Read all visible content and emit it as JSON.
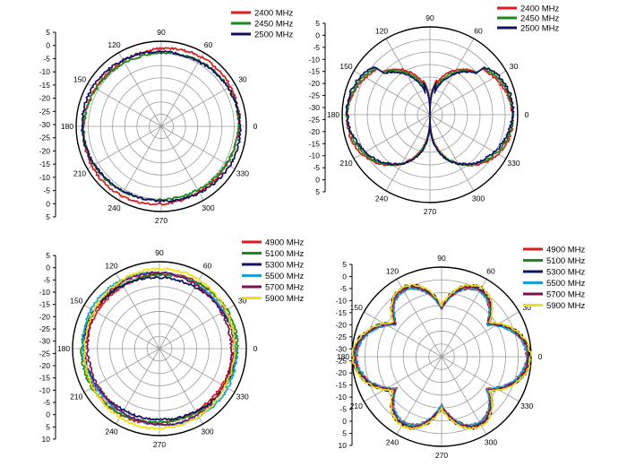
{
  "chart_data": [
    {
      "type": "polar",
      "r_ticks": [
        "5",
        "0",
        "-5",
        "-10",
        "-15",
        "-20",
        "-25",
        "-30"
      ],
      "r_ticks_bottom": [
        "-25",
        "-20",
        "-15",
        "-10",
        "-5",
        "0",
        "5"
      ],
      "r_range": [
        -30,
        5
      ],
      "angle_labels": [
        "90",
        "60",
        "30",
        "0",
        "330",
        "300",
        "270",
        "240",
        "210",
        "180",
        "150",
        "120"
      ],
      "series": [
        {
          "name": "2400 MHz",
          "color": "#e0191f",
          "shape": "omni",
          "level": 2.0
        },
        {
          "name": "2450 MHz",
          "color": "#1a8a1a",
          "shape": "omni",
          "level": 1.0
        },
        {
          "name": "2500 MHz",
          "color": "#101060",
          "shape": "omni",
          "level": 1.6
        }
      ]
    },
    {
      "type": "polar",
      "r_ticks": [
        "5",
        "0",
        "-5",
        "-10",
        "-15",
        "-20",
        "-25",
        "-30"
      ],
      "r_ticks_bottom": [
        "-25",
        "-20",
        "-15",
        "-10",
        "-5",
        "0",
        "5"
      ],
      "r_range": [
        -30,
        5
      ],
      "angle_labels": [
        "90",
        "60",
        "30",
        "0",
        "330",
        "300",
        "270",
        "240",
        "210",
        "180",
        "150",
        "120"
      ],
      "series": [
        {
          "name": "2400 MHz",
          "color": "#e0191f",
          "shape": "dipole",
          "level": 0
        },
        {
          "name": "2450 MHz",
          "color": "#1a8a1a",
          "shape": "dipole",
          "level": 0
        },
        {
          "name": "2500 MHz",
          "color": "#101060",
          "shape": "dipole",
          "level": 0
        }
      ]
    },
    {
      "type": "polar",
      "r_ticks": [
        "5",
        "0",
        "-5",
        "-10",
        "-15",
        "-20",
        "-25",
        "-30"
      ],
      "r_ticks_bottom": [
        "-25",
        "-20",
        "-15",
        "-10",
        "-5",
        "0",
        "5",
        "10"
      ],
      "r_range": [
        -30,
        5
      ],
      "angle_labels": [
        "90",
        "60",
        "30",
        "0",
        "330",
        "300",
        "270",
        "240",
        "210",
        "180",
        "150",
        "120"
      ],
      "series": [
        {
          "name": "4900 MHz",
          "color": "#e0191f",
          "shape": "omni",
          "level": 0.0
        },
        {
          "name": "5100 MHz",
          "color": "#1a8a1a",
          "shape": "omni",
          "level": 0.5
        },
        {
          "name": "5300 MHz",
          "color": "#101060",
          "shape": "omni",
          "level": -0.5
        },
        {
          "name": "5500 MHz",
          "color": "#1aa0d8",
          "shape": "omni",
          "level": 0.8
        },
        {
          "name": "5700 MHz",
          "color": "#7a1050",
          "shape": "omni",
          "level": -0.2
        },
        {
          "name": "5900 MHz",
          "color": "#f0e010",
          "shape": "omni",
          "level": 1.2
        }
      ]
    },
    {
      "type": "polar",
      "r_ticks": [
        "5",
        "0",
        "-5",
        "-10",
        "-15",
        "-20",
        "-25",
        "-30"
      ],
      "r_ticks_bottom": [
        "-25",
        "-20",
        "-15",
        "-10",
        "-5",
        "0",
        "5",
        "10"
      ],
      "r_range": [
        -30,
        5
      ],
      "angle_labels": [
        "90",
        "60",
        "30",
        "0",
        "330",
        "300",
        "270",
        "240",
        "210",
        "180",
        "150",
        "120"
      ],
      "series": [
        {
          "name": "4900 MHz",
          "color": "#e0191f",
          "shape": "petal",
          "level": 0
        },
        {
          "name": "5100 MHz",
          "color": "#1a8a1a",
          "shape": "petal",
          "level": 0
        },
        {
          "name": "5300 MHz",
          "color": "#101060",
          "shape": "petal",
          "level": 0
        },
        {
          "name": "5500 MHz",
          "color": "#1aa0d8",
          "shape": "petal",
          "level": 0
        },
        {
          "name": "5700 MHz",
          "color": "#7a1050",
          "shape": "petal",
          "level": 0
        },
        {
          "name": "5900 MHz",
          "color": "#f0e010",
          "shape": "petal",
          "level": 0
        }
      ]
    }
  ]
}
